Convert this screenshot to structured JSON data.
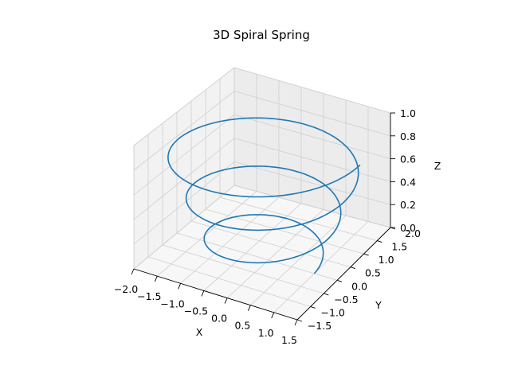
{
  "colors": {
    "line": "#1f77b4",
    "pane_back": "#ececec",
    "pane_side": "#f2f2f2",
    "pane_floor": "#f7f7f7",
    "grid": "#cfcfcf",
    "axis": "#000000"
  },
  "chart_data": {
    "type": "line",
    "projection": "3d",
    "title": "3D Spiral Spring",
    "xlabel": "X",
    "ylabel": "Y",
    "zlabel": "Z",
    "xlim": [
      -2.0,
      1.5
    ],
    "ylim": [
      -1.5,
      2.0
    ],
    "zlim": [
      0.0,
      1.0
    ],
    "xticks": [
      "−2.0",
      "−1.5",
      "−1.0",
      "−0.5",
      "0.0",
      "0.5",
      "1.0",
      "1.5"
    ],
    "yticks": [
      "−1.5",
      "−1.0",
      "−0.5",
      "0.0",
      "0.5",
      "1.0",
      "1.5",
      "2.0"
    ],
    "zticks": [
      "0.0",
      "0.2",
      "0.4",
      "0.6",
      "0.8",
      "1.0"
    ],
    "grid": true,
    "series": [
      {
        "line_style": "solid",
        "parametric": {
          "x": "r(t)·cos(t)",
          "y": "r(t)·sin(t)",
          "z": "t / t_max",
          "t_range": [
            0,
            18.85
          ],
          "r_range": [
            1.0,
            2.0
          ]
        }
      }
    ]
  }
}
